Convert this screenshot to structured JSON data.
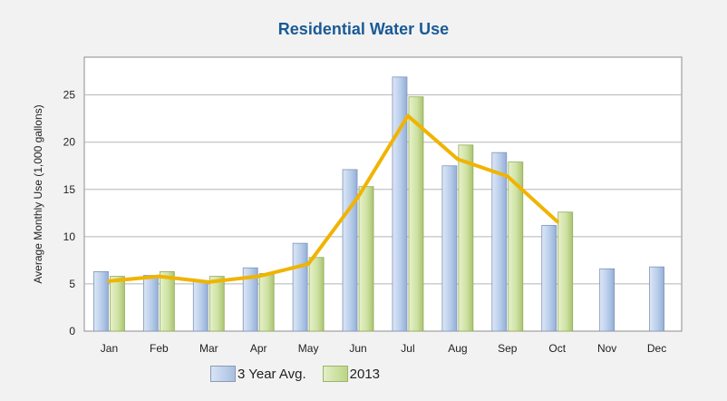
{
  "chart_data": {
    "type": "bar",
    "title": "Residential Water Use",
    "xlabel": "",
    "ylabel": "Average Monthly Use (1,000 gallons)",
    "categories": [
      "Jan",
      "Feb",
      "Mar",
      "Apr",
      "May",
      "Jun",
      "Jul",
      "Aug",
      "Sep",
      "Oct",
      "Nov",
      "Dec"
    ],
    "ylim": [
      0,
      29
    ],
    "yticks": [
      0,
      5,
      10,
      15,
      20,
      25
    ],
    "grid": true,
    "legend_position": "bottom",
    "series": [
      {
        "name": "3 Year Avg.",
        "type": "bar",
        "color": "#b8cdea",
        "values": [
          6.3,
          5.9,
          5.3,
          6.7,
          9.3,
          17.1,
          26.9,
          17.5,
          18.9,
          11.2,
          6.6,
          6.8
        ]
      },
      {
        "name": "2013",
        "type": "bar",
        "color": "#cfe2a4",
        "values": [
          5.8,
          6.3,
          5.8,
          6.1,
          7.8,
          15.3,
          24.8,
          19.7,
          17.9,
          12.6,
          null,
          null
        ]
      },
      {
        "name": "",
        "type": "line",
        "color": "#f0b400",
        "values": [
          5.3,
          5.8,
          5.2,
          5.8,
          7.1,
          14.2,
          22.8,
          18.2,
          16.4,
          11.6,
          null,
          null
        ]
      }
    ]
  }
}
